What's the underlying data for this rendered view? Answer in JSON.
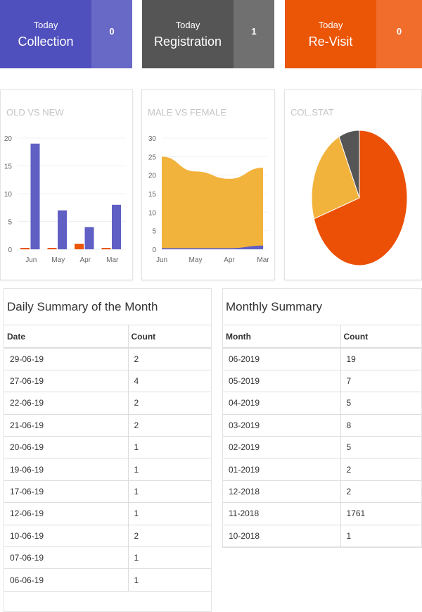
{
  "cards": [
    {
      "today": "Today",
      "title": "Collection",
      "count": "0",
      "color": "#4f4fbd",
      "count_color": "#6868c7"
    },
    {
      "today": "Today",
      "title": "Registration",
      "count": "1",
      "color": "#555555",
      "count_color": "#707070"
    },
    {
      "today": "Today",
      "title": "Re-Visit",
      "count": "0",
      "color": "#eb5506",
      "count_color": "#f06d2c"
    }
  ],
  "charts": {
    "bar_title": "OLD VS NEW",
    "area_title": "MALE VS FEMALE",
    "pie_title": "COL.STAT"
  },
  "chart_data": [
    {
      "type": "bar",
      "title": "OLD VS NEW",
      "categories": [
        "Jun",
        "May",
        "Apr",
        "Mar"
      ],
      "ylim": [
        0,
        20
      ],
      "yticks": [
        0,
        5,
        10,
        15,
        20
      ],
      "series": [
        {
          "values": [
            0,
            0,
            1,
            0
          ],
          "color": "#eb5506"
        },
        {
          "values": [
            19,
            7,
            4,
            8
          ],
          "color": "#5f5fc4"
        }
      ]
    },
    {
      "type": "area",
      "title": "MALE VS FEMALE",
      "categories": [
        "Jun",
        "May",
        "Apr",
        "Mar"
      ],
      "ylim": [
        0,
        30
      ],
      "yticks": [
        0,
        5,
        10,
        15,
        20,
        25,
        30
      ],
      "series": [
        {
          "values": [
            0,
            0,
            0,
            1
          ],
          "color": "#5f5fc4"
        },
        {
          "values": [
            25,
            21,
            19,
            21
          ],
          "color": "#f2b33d"
        }
      ]
    },
    {
      "type": "pie",
      "title": "COL.STAT",
      "values": [
        70,
        23,
        7
      ],
      "colors": [
        "#eb5006",
        "#f2b33d",
        "#555555"
      ]
    }
  ],
  "daily": {
    "title": "Daily Summary of the Month",
    "headers": [
      "Date",
      "Count"
    ],
    "rows": [
      [
        "29-06-19",
        "2"
      ],
      [
        "27-06-19",
        "4"
      ],
      [
        "22-06-19",
        "2"
      ],
      [
        "21-06-19",
        "2"
      ],
      [
        "20-06-19",
        "1"
      ],
      [
        "19-06-19",
        "1"
      ],
      [
        "17-06-19",
        "1"
      ],
      [
        "12-06-19",
        "1"
      ],
      [
        "10-06-19",
        "2"
      ],
      [
        "07-06-19",
        "1"
      ],
      [
        "06-06-19",
        "1"
      ]
    ]
  },
  "monthly": {
    "title": "Monthly Summary",
    "headers": [
      "Month",
      "Count"
    ],
    "rows": [
      [
        "06-2019",
        "19"
      ],
      [
        "05-2019",
        "7"
      ],
      [
        "04-2019",
        "5"
      ],
      [
        "03-2019",
        "8"
      ],
      [
        "02-2019",
        "5"
      ],
      [
        "01-2019",
        "2"
      ],
      [
        "12-2018",
        "2"
      ],
      [
        "11-2018",
        "1761"
      ],
      [
        "10-2018",
        "1"
      ]
    ]
  }
}
